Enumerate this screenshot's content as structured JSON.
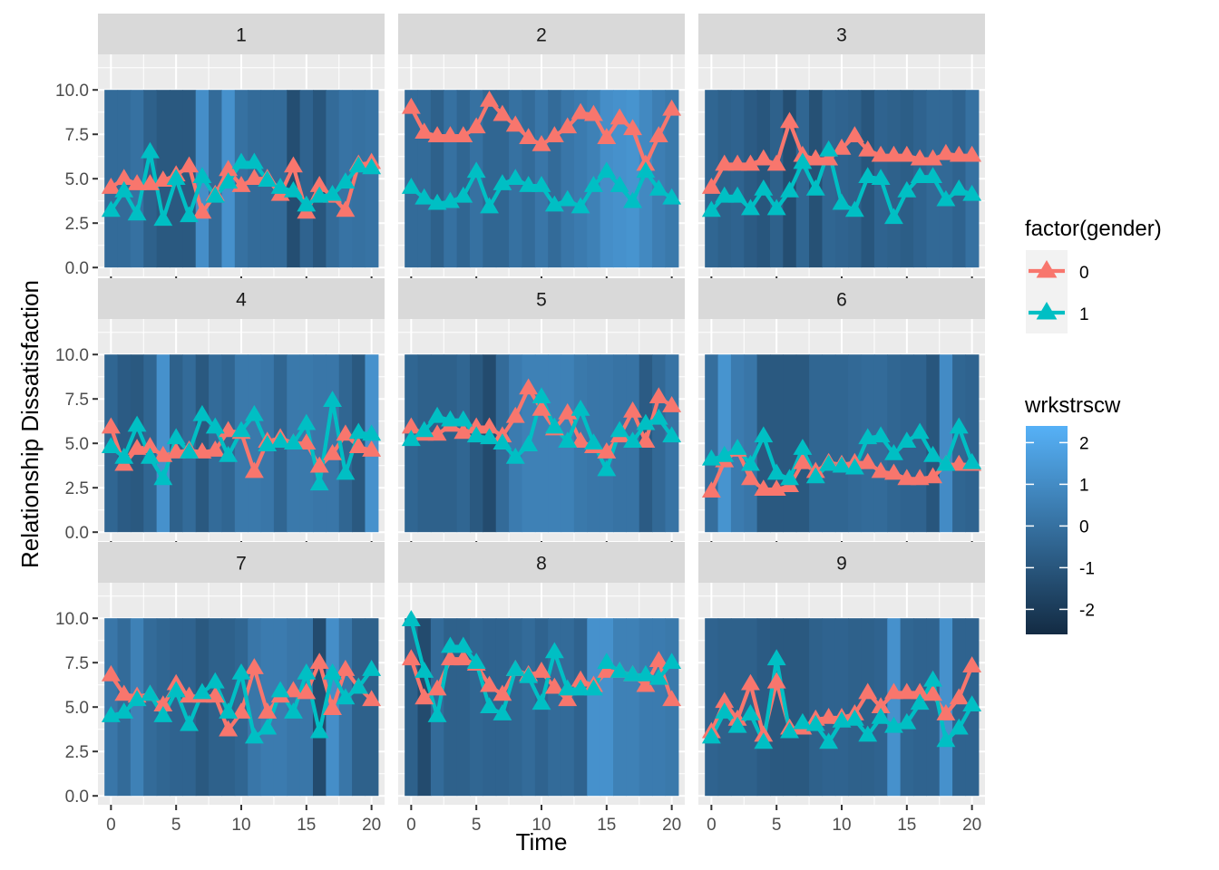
{
  "chart_data": {
    "type": "faceted-line-with-tile-background",
    "xlabel": "Time",
    "ylabel": "Relationship Dissatisfaction",
    "xlim": [
      -1,
      21
    ],
    "ylim": [
      -0.5,
      12
    ],
    "x_ticks": [
      0,
      5,
      10,
      15,
      20
    ],
    "x_tick_labels": [
      "0",
      "5",
      "10",
      "15",
      "20"
    ],
    "y_ticks": [
      0,
      2.5,
      5,
      7.5,
      10
    ],
    "y_tick_labels": [
      "0.0",
      "2.5",
      "5.0",
      "7.5",
      "10.0"
    ],
    "grid": true,
    "legend_color": {
      "title": "factor(gender)",
      "entries": [
        {
          "label": "0",
          "color": "#F8766D"
        },
        {
          "label": "1",
          "color": "#00BFC4"
        }
      ]
    },
    "legend_fill": {
      "title": "wrkstrscw",
      "low_color": "#132B43",
      "high_color": "#56B1F7",
      "limits": [
        -2.6,
        2.4
      ],
      "ticks": [
        2,
        1,
        0,
        -1,
        -2
      ],
      "tick_labels": [
        "2",
        "1",
        "0",
        "-1",
        "-2"
      ]
    },
    "time": [
      0,
      1,
      2,
      3,
      4,
      5,
      6,
      7,
      8,
      9,
      10,
      11,
      12,
      13,
      14,
      15,
      16,
      17,
      18,
      19,
      20
    ],
    "facets": [
      {
        "label": "1",
        "stress": [
          -0.2,
          -0.2,
          0,
          -0.6,
          -0.9,
          -0.9,
          -0.9,
          1.1,
          -0.2,
          1.2,
          0,
          -0.2,
          -0.2,
          -0.2,
          -1.3,
          -0.5,
          -1.0,
          -0.2,
          0.1,
          0.0,
          0.1
        ],
        "g0": [
          4.5,
          5.0,
          4.7,
          4.7,
          4.9,
          5.2,
          5.7,
          3.1,
          4.1,
          5.5,
          4.6,
          5.0,
          5.0,
          4.1,
          5.7,
          3.1,
          4.6,
          4.0,
          3.2,
          5.8,
          5.9
        ],
        "g1": [
          3.2,
          4.3,
          3.0,
          6.5,
          2.7,
          5.0,
          2.9,
          5.1,
          4.0,
          4.8,
          5.9,
          5.9,
          4.9,
          4.5,
          4.3,
          3.5,
          4.0,
          4.1,
          4.8,
          5.7,
          5.6
        ]
      },
      {
        "label": "2",
        "stress": [
          -0.2,
          -0.2,
          -0.6,
          0,
          -0.4,
          0,
          -0.4,
          -0.4,
          0,
          -0.2,
          0.2,
          -0.2,
          0.2,
          0.4,
          0.6,
          1.1,
          1.2,
          1.3,
          0.9,
          0.5,
          0.3
        ],
        "g0": [
          9.0,
          7.6,
          7.4,
          7.4,
          7.4,
          7.9,
          9.4,
          8.6,
          8.0,
          7.3,
          6.9,
          7.4,
          7.9,
          8.7,
          8.6,
          7.3,
          8.4,
          7.8,
          5.8,
          7.4,
          8.9
        ],
        "g1": [
          4.5,
          3.9,
          3.6,
          3.7,
          4.0,
          5.4,
          3.4,
          4.7,
          5.0,
          4.6,
          4.6,
          3.5,
          3.8,
          3.4,
          4.6,
          5.4,
          4.6,
          3.7,
          5.4,
          4.4,
          3.9
        ]
      },
      {
        "label": "3",
        "stress": [
          -0.4,
          -0.6,
          -0.5,
          -0.8,
          -1.0,
          -0.6,
          -1.3,
          -0.4,
          -1.2,
          -0.4,
          -0.5,
          -0.6,
          -1.0,
          -0.5,
          -0.6,
          -0.7,
          -0.5,
          -0.3,
          -0.3,
          -0.5,
          0.0
        ],
        "g0": [
          4.5,
          5.8,
          5.8,
          5.8,
          6.1,
          5.8,
          8.2,
          6.3,
          6.1,
          6.1,
          6.7,
          7.4,
          6.6,
          6.3,
          6.3,
          6.3,
          6.1,
          6.1,
          6.4,
          6.3,
          6.3
        ],
        "g1": [
          3.2,
          4.0,
          4.0,
          3.3,
          4.4,
          3.3,
          4.3,
          5.9,
          4.4,
          6.6,
          3.6,
          3.2,
          5.1,
          5.0,
          2.8,
          4.3,
          5.1,
          5.1,
          3.8,
          4.4,
          4.1
        ]
      },
      {
        "label": "4",
        "stress": [
          -0.4,
          -0.8,
          -0.9,
          -0.4,
          1.2,
          -0.6,
          -0.2,
          -0.9,
          -0.2,
          -0.4,
          0.3,
          0.3,
          0.2,
          -0.4,
          0.3,
          0.3,
          0.2,
          0.2,
          -0.4,
          -0.9,
          1.2
        ],
        "g0": [
          5.9,
          3.8,
          4.7,
          4.8,
          4.3,
          4.5,
          4.6,
          4.5,
          4.6,
          5.7,
          5.6,
          3.4,
          5.1,
          5.3,
          5.0,
          5.0,
          3.7,
          4.4,
          5.5,
          4.8,
          4.6
        ],
        "g1": [
          4.8,
          4.2,
          6.0,
          4.2,
          3.0,
          5.3,
          4.5,
          6.6,
          5.9,
          4.3,
          5.7,
          6.6,
          4.9,
          5.1,
          5.0,
          6.1,
          2.7,
          7.4,
          3.3,
          5.6,
          5.5
        ]
      },
      {
        "label": "5",
        "stress": [
          -0.4,
          -0.6,
          -0.6,
          -0.6,
          -0.4,
          -0.9,
          -1.4,
          -0.2,
          0.4,
          0.6,
          0.6,
          0.6,
          0.6,
          0.3,
          0.2,
          0.2,
          0.1,
          0.1,
          -0.8,
          -0.3,
          0.1
        ],
        "g0": [
          5.9,
          5.5,
          5.5,
          6.0,
          5.6,
          5.9,
          5.9,
          5.4,
          6.5,
          8.1,
          6.9,
          5.8,
          6.7,
          5.1,
          4.8,
          4.5,
          5.4,
          6.8,
          5.1,
          7.6,
          7.1
        ],
        "g1": [
          5.2,
          5.7,
          6.5,
          6.3,
          6.3,
          5.4,
          5.3,
          5.0,
          4.2,
          4.9,
          7.6,
          5.9,
          5.1,
          6.9,
          5.0,
          3.5,
          5.7,
          5.1,
          6.1,
          6.4,
          5.4
        ]
      },
      {
        "label": "6",
        "stress": [
          -0.1,
          1.3,
          0.4,
          0.2,
          -0.9,
          -0.9,
          -0.9,
          -0.9,
          -0.4,
          -0.4,
          -0.4,
          -0.3,
          -0.2,
          -0.2,
          -0.4,
          -0.5,
          -0.5,
          -1.0,
          1.0,
          -0.4,
          -0.5
        ],
        "g0": [
          2.3,
          4.0,
          4.6,
          3.0,
          2.4,
          2.4,
          2.6,
          3.9,
          3.4,
          3.9,
          3.8,
          3.9,
          3.9,
          3.4,
          3.3,
          3.0,
          3.0,
          3.1,
          3.8,
          3.8,
          3.8
        ],
        "g1": [
          4.1,
          4.3,
          4.7,
          3.8,
          5.4,
          3.3,
          3.0,
          4.7,
          3.1,
          3.8,
          3.7,
          3.6,
          5.3,
          5.4,
          4.4,
          5.1,
          5.6,
          4.3,
          3.8,
          5.9,
          3.9
        ]
      },
      {
        "label": "7",
        "stress": [
          0.2,
          -0.2,
          0.6,
          -0.2,
          -0.4,
          -0.5,
          -0.5,
          -0.9,
          -0.6,
          -0.6,
          -0.4,
          0.2,
          0.4,
          0.4,
          0.2,
          0.2,
          -1.4,
          1.1,
          0.2,
          -0.6,
          -0.6
        ],
        "g0": [
          6.8,
          5.7,
          5.6,
          5.7,
          5.1,
          6.3,
          5.6,
          5.6,
          5.6,
          3.7,
          4.7,
          7.2,
          4.7,
          5.6,
          5.9,
          5.8,
          7.5,
          4.9,
          7.1,
          6.1,
          5.4
        ],
        "g1": [
          4.5,
          4.7,
          5.4,
          5.7,
          4.5,
          5.9,
          4.0,
          5.8,
          6.4,
          4.7,
          6.9,
          3.3,
          3.8,
          5.9,
          4.7,
          6.9,
          3.6,
          6.9,
          5.5,
          6.1,
          7.1
        ]
      },
      {
        "label": "8",
        "stress": [
          -0.6,
          -1.4,
          -0.2,
          -0.6,
          -0.6,
          -0.4,
          -0.5,
          -0.5,
          -0.4,
          -0.2,
          -0.5,
          -0.2,
          -0.2,
          -0.5,
          1.2,
          1.2,
          0.6,
          0.6,
          0.4,
          0.4,
          0.3
        ],
        "g0": [
          7.7,
          5.5,
          6.0,
          7.7,
          7.7,
          7.4,
          6.2,
          5.7,
          7.1,
          6.8,
          7.0,
          6.1,
          5.4,
          6.5,
          6.2,
          7.0,
          7.0,
          6.8,
          6.2,
          7.6,
          5.4
        ],
        "g1": [
          9.9,
          7.0,
          4.5,
          8.4,
          8.4,
          7.5,
          5.0,
          4.6,
          7.1,
          6.7,
          5.2,
          8.1,
          6.0,
          6.0,
          6.0,
          7.5,
          7.0,
          6.8,
          6.8,
          6.6,
          7.5
        ]
      },
      {
        "label": "9",
        "stress": [
          -0.5,
          -0.6,
          -0.6,
          -0.6,
          -0.8,
          -0.9,
          -0.9,
          -0.9,
          -0.6,
          -0.5,
          -0.5,
          -0.6,
          -0.6,
          -0.5,
          1.2,
          -0.4,
          -0.5,
          -0.5,
          1.2,
          -0.5,
          -0.5
        ],
        "g0": [
          3.6,
          5.3,
          4.3,
          6.3,
          3.4,
          6.4,
          3.8,
          3.8,
          4.3,
          4.4,
          4.4,
          4.6,
          5.8,
          5.0,
          5.8,
          5.8,
          5.8,
          5.7,
          4.6,
          5.5,
          7.3
        ],
        "g1": [
          3.3,
          4.7,
          3.9,
          4.6,
          3.0,
          7.7,
          3.6,
          4.1,
          4.0,
          3.0,
          4.2,
          4.3,
          3.4,
          4.4,
          3.9,
          4.1,
          5.2,
          6.5,
          3.1,
          3.8,
          5.1
        ]
      }
    ]
  }
}
